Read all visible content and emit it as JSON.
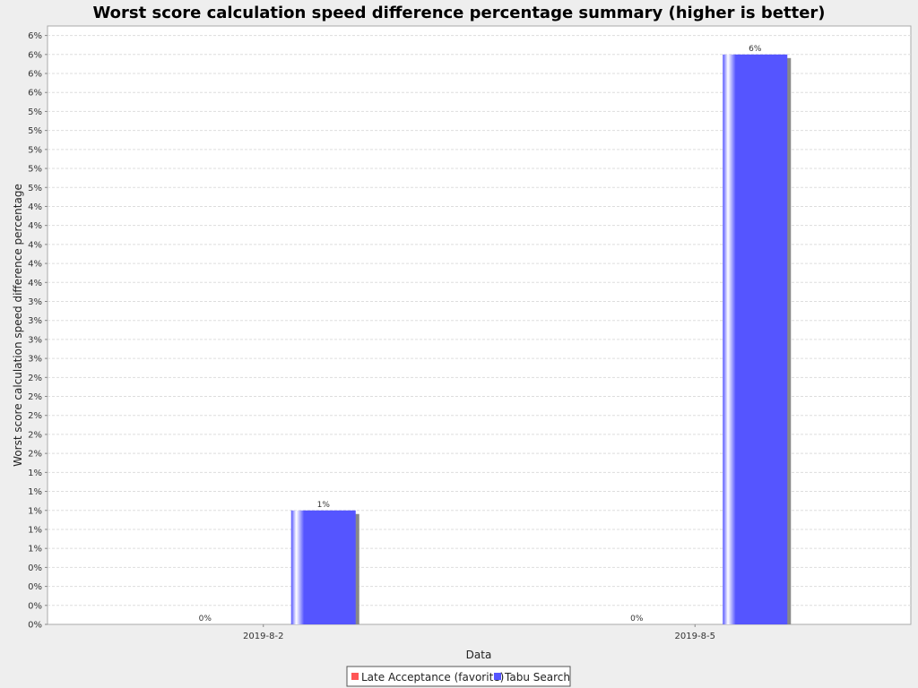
{
  "chart_data": {
    "type": "bar",
    "title": "Worst score calculation speed difference percentage summary (higher is better)",
    "xlabel": "Data",
    "ylabel": "Worst score calculation speed difference percentage",
    "categories": [
      "2019-8-2",
      "2019-8-5"
    ],
    "series": [
      {
        "name": "Late Acceptance (favorite)",
        "color": "#ff5555",
        "values": [
          0,
          0
        ],
        "labels": [
          "0%",
          "0%"
        ]
      },
      {
        "name": "Tabu Search",
        "color": "#5555ff",
        "values": [
          1.2,
          6.0
        ],
        "labels": [
          "1%",
          "6%"
        ]
      }
    ],
    "ylim": [
      0,
      6.3
    ],
    "y_ticks": [
      "0%",
      "0%",
      "0%",
      "0%",
      "1%",
      "1%",
      "1%",
      "1%",
      "1%",
      "2%",
      "2%",
      "2%",
      "2%",
      "2%",
      "3%",
      "3%",
      "3%",
      "3%",
      "4%",
      "4%",
      "4%",
      "4%",
      "4%",
      "5%",
      "5%",
      "5%",
      "5%",
      "5%",
      "6%",
      "6%",
      "6%",
      "6%"
    ],
    "grid": true,
    "legend_position": "bottom"
  }
}
